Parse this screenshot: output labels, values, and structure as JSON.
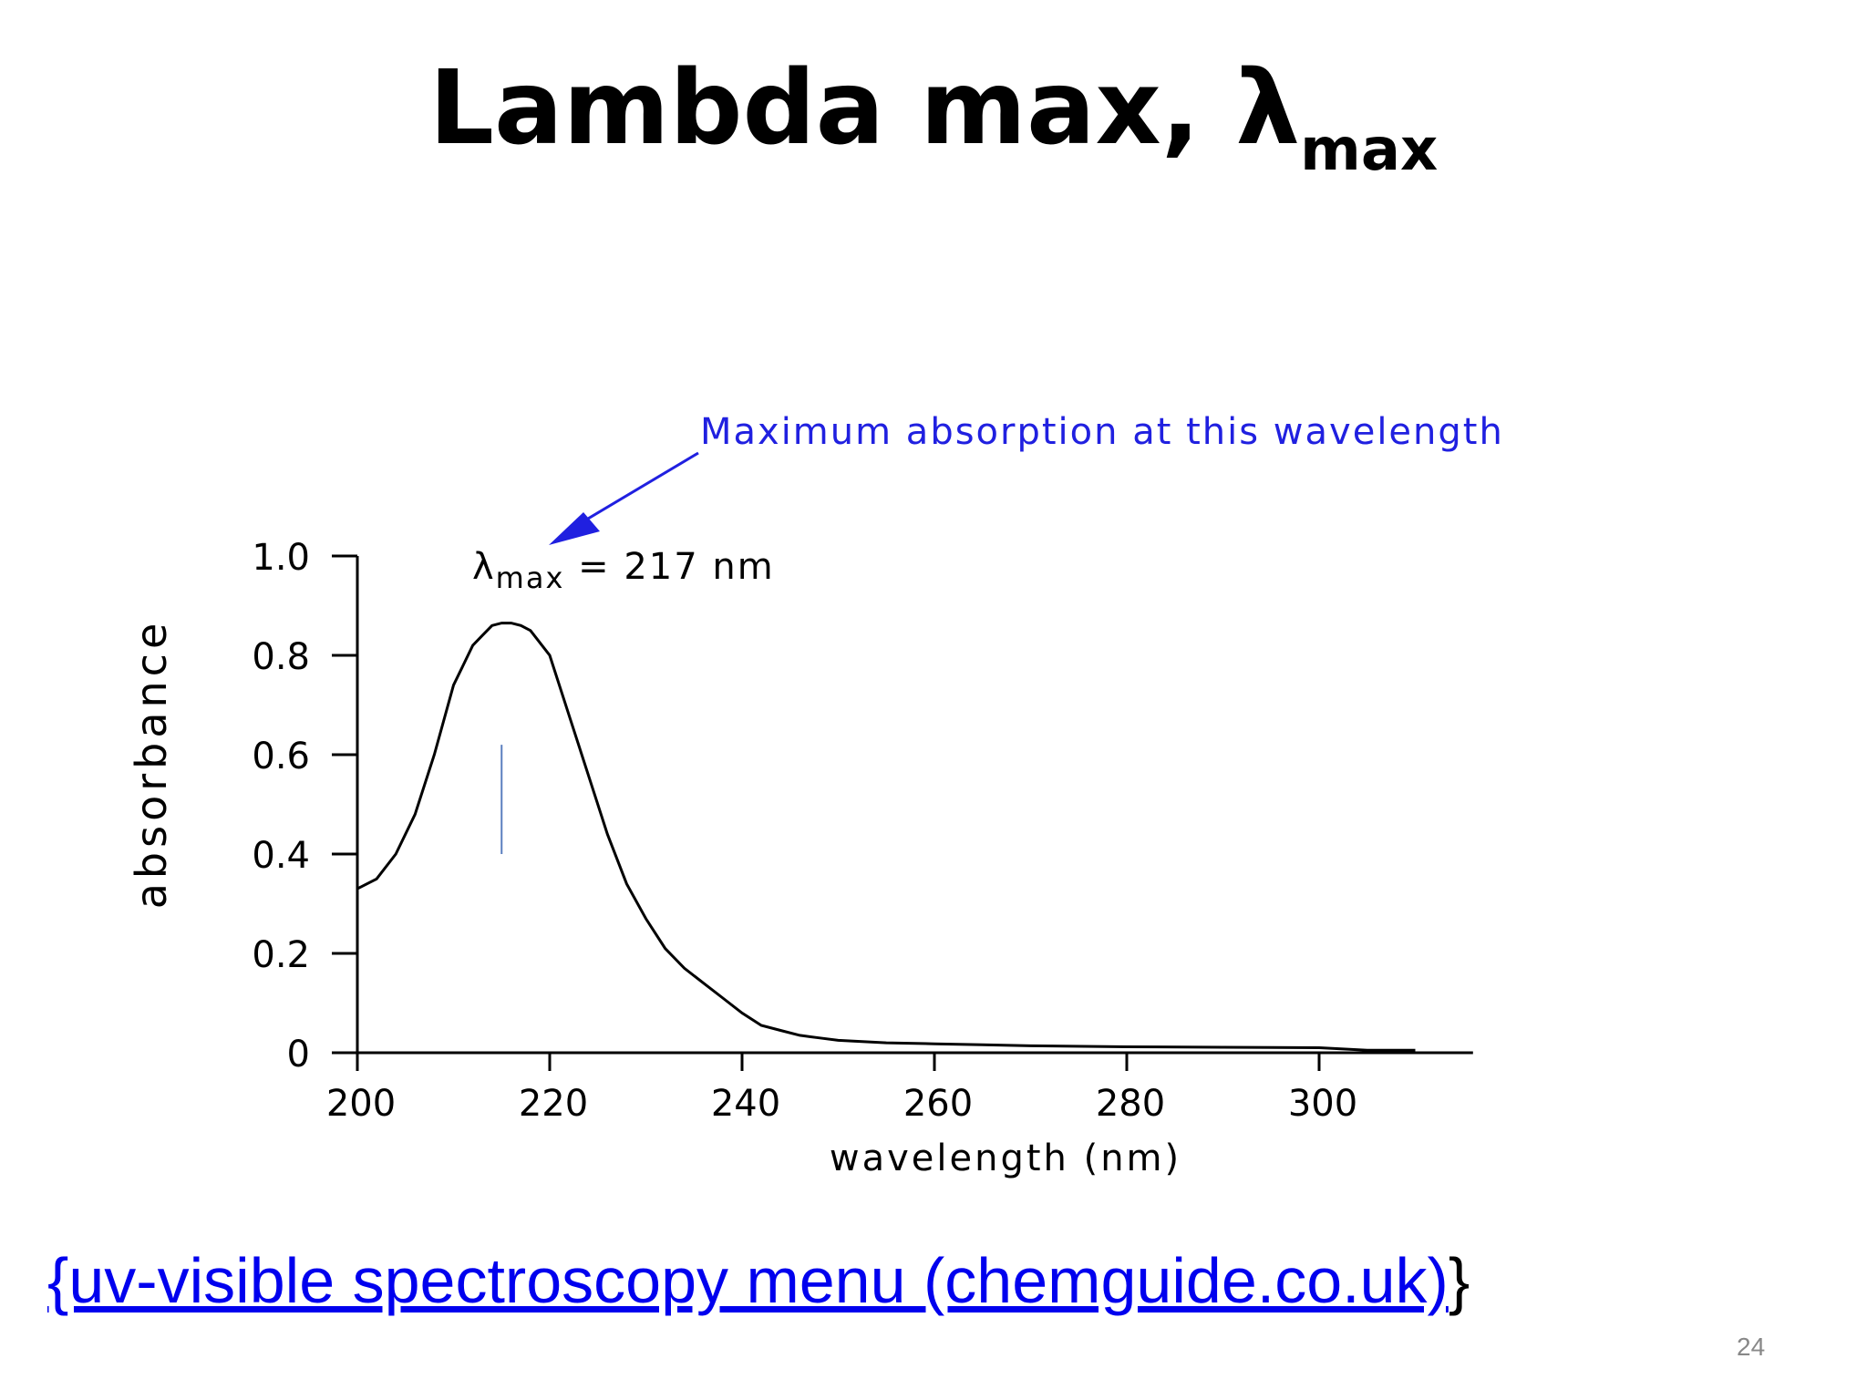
{
  "slide": {
    "title_main": "Lambda max, λ",
    "title_sub": "max",
    "source_link": "{uv-visible spectroscopy menu (chemguide.co.uk)",
    "source_close": "}",
    "page_number": "24"
  },
  "colors": {
    "annotation": "#2020e0",
    "curve": "#000000",
    "link": "#0000ee",
    "marker": "#5a7fbf"
  },
  "chart_data": {
    "type": "line",
    "title": "",
    "xlabel": "wavelength (nm)",
    "ylabel": "absorbance",
    "xlim": [
      200,
      316
    ],
    "ylim": [
      0,
      1.0
    ],
    "x_ticks": [
      200,
      220,
      240,
      260,
      280,
      300
    ],
    "x_tick_labels": [
      "200",
      "220",
      "240",
      "260",
      "280",
      "300"
    ],
    "y_ticks": [
      0,
      0.2,
      0.4,
      0.6,
      0.8,
      1.0
    ],
    "y_tick_labels": [
      "0",
      "0.2",
      "0.4",
      "0.6",
      "0.8",
      "1.0"
    ],
    "grid": false,
    "series": [
      {
        "x": [
          200,
          202,
          204,
          206,
          208,
          210,
          211,
          212,
          213,
          214,
          215,
          216,
          217,
          218,
          220,
          222,
          224,
          226,
          228,
          230,
          232,
          234,
          236,
          238,
          240,
          242,
          244,
          246,
          248,
          250,
          255,
          260,
          265,
          270,
          280,
          290,
          300,
          305,
          310
        ],
        "y": [
          0.33,
          0.35,
          0.4,
          0.48,
          0.6,
          0.74,
          0.78,
          0.82,
          0.84,
          0.86,
          0.865,
          0.865,
          0.86,
          0.85,
          0.8,
          0.68,
          0.56,
          0.44,
          0.34,
          0.27,
          0.21,
          0.17,
          0.14,
          0.11,
          0.08,
          0.055,
          0.045,
          0.035,
          0.03,
          0.025,
          0.02,
          0.018,
          0.016,
          0.014,
          0.012,
          0.011,
          0.01,
          0.005,
          0.005
        ]
      }
    ],
    "annotations": {
      "callout": "Maximum absorption at this wavelength",
      "lambda_symbol": "λ",
      "lambda_sub": "max",
      "lambda_value": " = 217 nm",
      "marker_x": 215,
      "marker_y_range": [
        0.4,
        0.62
      ]
    }
  }
}
